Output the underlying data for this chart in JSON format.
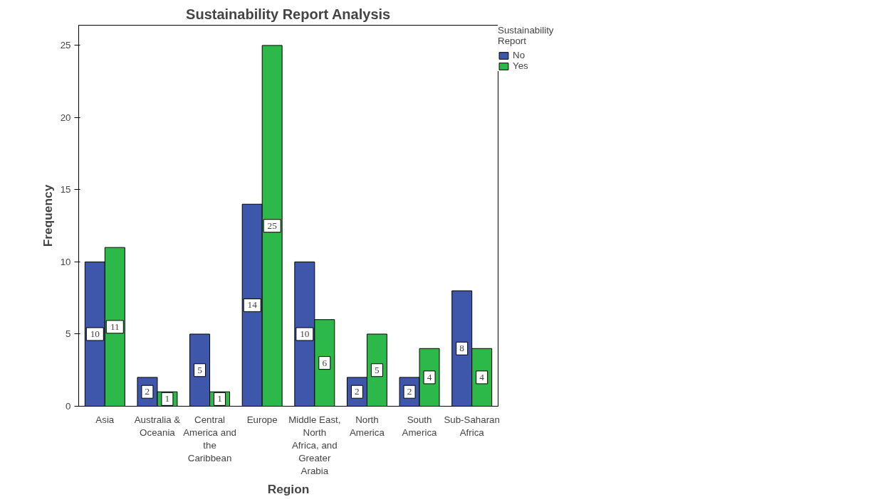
{
  "chart_data": {
    "type": "bar",
    "title": "Sustainability Report Analysis",
    "xlabel": "Region",
    "ylabel": "Frequency",
    "legend_title": "Sustainability Report",
    "categories": [
      "Asia",
      "Australia & Oceania",
      "Central America and the Caribbean",
      "Europe",
      "Middle East, North Africa, and Greater Arabia",
      "North America",
      "South America",
      "Sub-Saharan Africa"
    ],
    "series": [
      {
        "name": "No",
        "color": "#3f57ab",
        "values": [
          10,
          2,
          5,
          14,
          10,
          2,
          2,
          8
        ]
      },
      {
        "name": "Yes",
        "color": "#2db84a",
        "values": [
          11,
          1,
          1,
          25,
          6,
          5,
          4,
          4
        ]
      }
    ],
    "ylim": [
      0,
      26.4
    ],
    "yticks": [
      0,
      5,
      10,
      15,
      20,
      25
    ],
    "grid": false,
    "legend": "top right",
    "data_labels": true
  }
}
